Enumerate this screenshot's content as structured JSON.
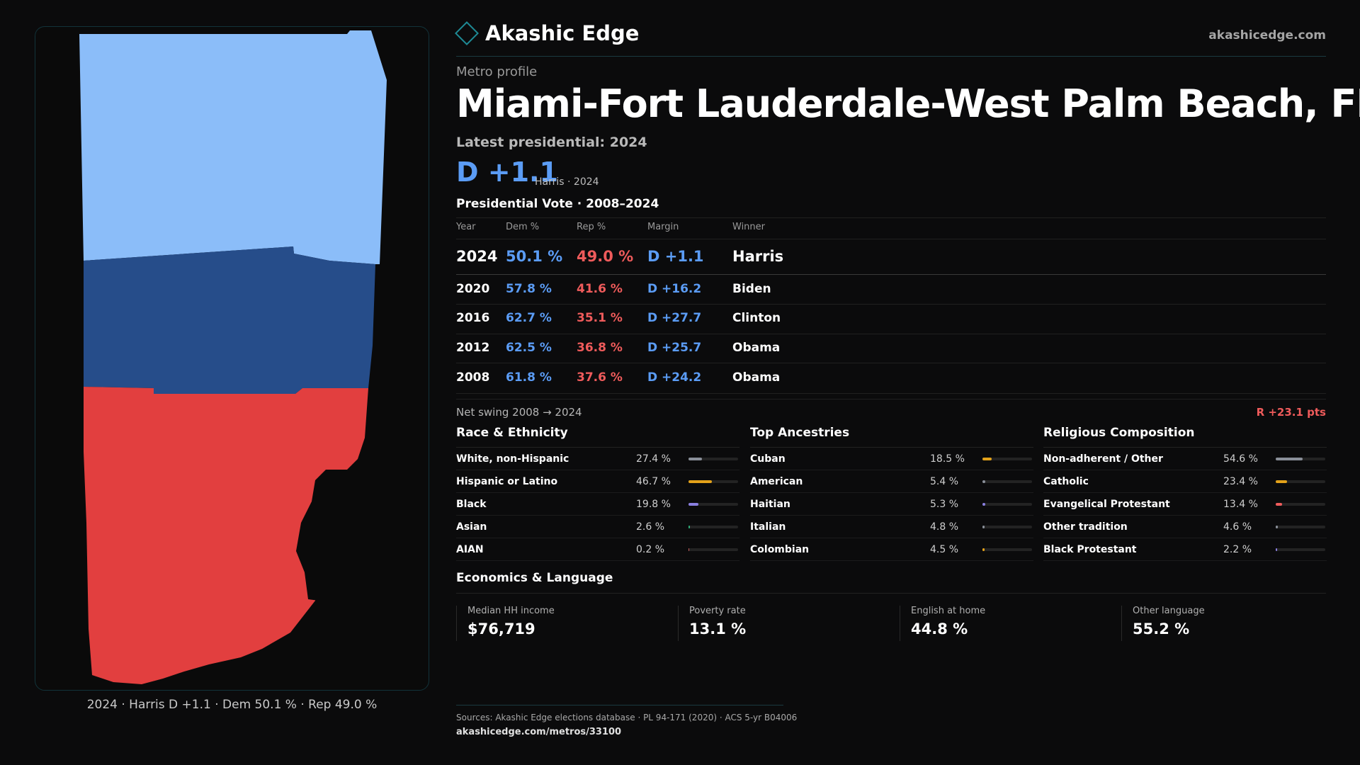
{
  "map": {
    "caption": "2024 · Harris D +1.1 · Dem 50.1 % · Rep 49.0 %",
    "colors": {
      "dem_light": "#8bbdf9",
      "dem_dark": "#264d8a",
      "rep": "#e23f3f"
    }
  },
  "brand": {
    "name": "Akashic Edge",
    "url": "akashicedge.com"
  },
  "header": {
    "eyebrow": "Metro profile",
    "title": "Miami-Fort Lauderdale-West Palm Beach, FL",
    "latest": "Latest presidential: 2024",
    "margin": "D +1.1",
    "margin_sub": "Harris · 2024"
  },
  "votes": {
    "title": "Presidential Vote · 2008–2024",
    "headers": {
      "year": "Year",
      "dem": "Dem %",
      "rep": "Rep %",
      "margin": "Margin",
      "winner": "Winner"
    },
    "rows": [
      {
        "year": "2024",
        "dem": "50.1 %",
        "rep": "49.0 %",
        "margin": "D +1.1",
        "winner": "Harris"
      },
      {
        "year": "2020",
        "dem": "57.8 %",
        "rep": "41.6 %",
        "margin": "D +16.2",
        "winner": "Biden"
      },
      {
        "year": "2016",
        "dem": "62.7 %",
        "rep": "35.1 %",
        "margin": "D +27.7",
        "winner": "Clinton"
      },
      {
        "year": "2012",
        "dem": "62.5 %",
        "rep": "36.8 %",
        "margin": "D +25.7",
        "winner": "Obama"
      },
      {
        "year": "2008",
        "dem": "61.8 %",
        "rep": "37.6 %",
        "margin": "D +24.2",
        "winner": "Obama"
      }
    ],
    "swing_label": "Net swing 2008 → 2024",
    "swing_value": "R +23.1 pts"
  },
  "race": {
    "title": "Race & Ethnicity",
    "rows": [
      {
        "label": "White, non-Hispanic",
        "pct": "27.4 %",
        "value": 27.4,
        "color": "#8a8f99"
      },
      {
        "label": "Hispanic or Latino",
        "pct": "46.7 %",
        "value": 46.7,
        "color": "#e3a21a"
      },
      {
        "label": "Black",
        "pct": "19.8 %",
        "value": 19.8,
        "color": "#8a7fe0"
      },
      {
        "label": "Asian",
        "pct": "2.6 %",
        "value": 2.6,
        "color": "#2fb07a"
      },
      {
        "label": "AIAN",
        "pct": "0.2 %",
        "value": 0.2,
        "color": "#c25a5a"
      }
    ]
  },
  "ancestry": {
    "title": "Top Ancestries",
    "rows": [
      {
        "label": "Cuban",
        "pct": "18.5 %",
        "value": 18.5,
        "color": "#e3a21a"
      },
      {
        "label": "American",
        "pct": "5.4 %",
        "value": 5.4,
        "color": "#8a8f99"
      },
      {
        "label": "Haitian",
        "pct": "5.3 %",
        "value": 5.3,
        "color": "#8a7fe0"
      },
      {
        "label": "Italian",
        "pct": "4.8 %",
        "value": 4.8,
        "color": "#8a8f99"
      },
      {
        "label": "Colombian",
        "pct": "4.5 %",
        "value": 4.5,
        "color": "#e3a21a"
      }
    ]
  },
  "religion": {
    "title": "Religious Composition",
    "rows": [
      {
        "label": "Non-adherent / Other",
        "pct": "54.6 %",
        "value": 54.6,
        "color": "#8a8f99"
      },
      {
        "label": "Catholic",
        "pct": "23.4 %",
        "value": 23.4,
        "color": "#e3a21a"
      },
      {
        "label": "Evangelical Protestant",
        "pct": "13.4 %",
        "value": 13.4,
        "color": "#ef5b5b"
      },
      {
        "label": "Other tradition",
        "pct": "4.6 %",
        "value": 4.6,
        "color": "#8a8f99"
      },
      {
        "label": "Black Protestant",
        "pct": "2.2 %",
        "value": 2.2,
        "color": "#8a7fe0"
      }
    ]
  },
  "econ": {
    "title": "Economics & Language",
    "stats": [
      {
        "label": "Median HH income",
        "value": "$76,719"
      },
      {
        "label": "Poverty rate",
        "value": "13.1 %"
      },
      {
        "label": "English at home",
        "value": "44.8 %"
      },
      {
        "label": "Other language",
        "value": "55.2 %"
      }
    ]
  },
  "footer": {
    "sources": "Sources: Akashic Edge elections database · PL 94-171 (2020) · ACS 5-yr B04006",
    "url": "akashicedge.com/metros/33100"
  }
}
